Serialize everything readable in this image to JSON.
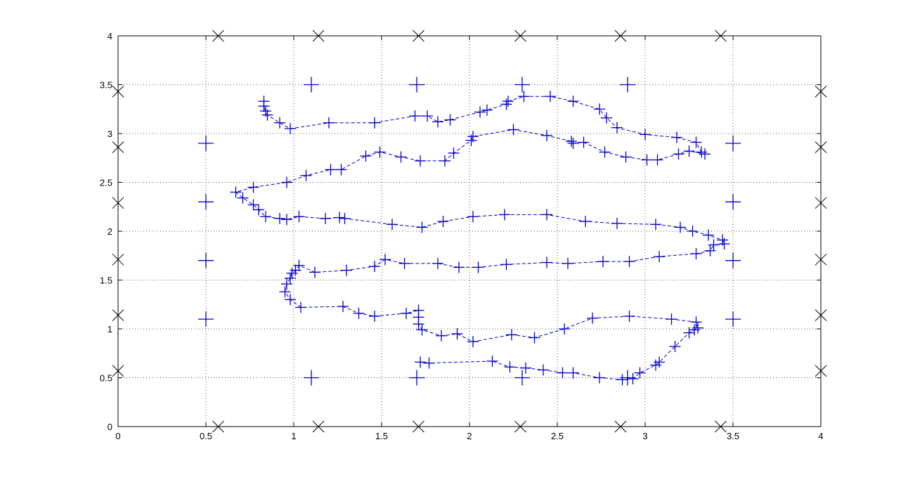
{
  "chart_data": {
    "type": "scatter",
    "title": "",
    "xlabel": "",
    "ylabel": "",
    "xlim": [
      0,
      4
    ],
    "ylim": [
      0,
      4
    ],
    "grid": true,
    "x_ticks": [
      "0",
      "0.5",
      "1",
      "1.5",
      "2",
      "2.5",
      "3",
      "3.5",
      "4"
    ],
    "y_ticks": [
      "0",
      "0.5",
      "1",
      "1.5",
      "2",
      "2.5",
      "3",
      "3.5",
      "4"
    ],
    "colors": {
      "series": "#0000cc",
      "markers": "#000000",
      "axes": "#000000",
      "grid": "#555555"
    },
    "series": [
      {
        "marker": "x",
        "color": "#000000",
        "points": [
          [
            0.57,
            4
          ],
          [
            1.14,
            4
          ],
          [
            1.71,
            4
          ],
          [
            2.29,
            4
          ],
          [
            2.86,
            4
          ],
          [
            3.43,
            4
          ],
          [
            0.57,
            0
          ],
          [
            1.14,
            0
          ],
          [
            1.71,
            0
          ],
          [
            2.29,
            0
          ],
          [
            2.86,
            0
          ],
          [
            3.43,
            0
          ],
          [
            0,
            0.57
          ],
          [
            0,
            1.14
          ],
          [
            0,
            1.71
          ],
          [
            0,
            2.29
          ],
          [
            0,
            2.86
          ],
          [
            0,
            3.43
          ],
          [
            4,
            0.57
          ],
          [
            4,
            1.14
          ],
          [
            4,
            1.71
          ],
          [
            4,
            2.29
          ],
          [
            4,
            2.86
          ],
          [
            4,
            3.43
          ]
        ]
      },
      {
        "marker": "+",
        "color": "#0000cc",
        "points": [
          [
            1.1,
            3.5
          ],
          [
            1.7,
            3.5
          ],
          [
            2.3,
            3.5
          ],
          [
            2.9,
            3.5
          ],
          [
            1.1,
            0.5
          ],
          [
            1.7,
            0.5
          ],
          [
            2.3,
            0.5
          ],
          [
            2.9,
            0.5
          ],
          [
            0.5,
            2.9
          ],
          [
            0.5,
            2.3
          ],
          [
            0.5,
            1.7
          ],
          [
            0.5,
            1.1
          ],
          [
            3.5,
            2.9
          ],
          [
            3.5,
            2.3
          ],
          [
            3.5,
            1.7
          ],
          [
            3.5,
            1.1
          ]
        ]
      },
      {
        "marker": "+",
        "line": "dashed",
        "color": "#0000cc",
        "points": [
          [
            1.72,
            0.66
          ],
          [
            1.77,
            0.65
          ],
          [
            2.13,
            0.67
          ],
          [
            2.23,
            0.61
          ],
          [
            2.32,
            0.6
          ],
          [
            2.42,
            0.58
          ],
          [
            2.53,
            0.55
          ],
          [
            2.59,
            0.55
          ],
          [
            2.74,
            0.5
          ],
          [
            2.87,
            0.48
          ],
          [
            2.93,
            0.49
          ],
          [
            2.97,
            0.55
          ],
          [
            3.06,
            0.63
          ],
          [
            3.08,
            0.66
          ],
          [
            3.17,
            0.82
          ],
          [
            3.25,
            0.96
          ],
          [
            3.28,
            0.99
          ],
          [
            3.3,
            1.01
          ],
          [
            3.29,
            1.07
          ],
          [
            3.15,
            1.1
          ],
          [
            2.91,
            1.13
          ],
          [
            2.7,
            1.11
          ],
          [
            2.54,
            1.0
          ],
          [
            2.37,
            0.91
          ],
          [
            2.24,
            0.94
          ],
          [
            2.02,
            0.87
          ],
          [
            1.93,
            0.95
          ],
          [
            1.84,
            0.93
          ],
          [
            1.73,
            0.99
          ],
          [
            1.71,
            1.05
          ],
          [
            1.71,
            1.12
          ],
          [
            1.71,
            1.19
          ],
          [
            1.64,
            1.16
          ],
          [
            1.46,
            1.13
          ],
          [
            1.37,
            1.16
          ],
          [
            1.28,
            1.23
          ],
          [
            1.04,
            1.22
          ],
          [
            0.98,
            1.3
          ],
          [
            0.95,
            1.38
          ],
          [
            0.96,
            1.46
          ],
          [
            0.98,
            1.52
          ],
          [
            0.99,
            1.57
          ],
          [
            1.01,
            1.6
          ],
          [
            1.03,
            1.65
          ],
          [
            1.12,
            1.58
          ],
          [
            1.3,
            1.6
          ],
          [
            1.46,
            1.64
          ],
          [
            1.52,
            1.71
          ],
          [
            1.63,
            1.67
          ],
          [
            1.82,
            1.67
          ],
          [
            1.94,
            1.63
          ],
          [
            2.05,
            1.63
          ],
          [
            2.21,
            1.66
          ],
          [
            2.44,
            1.68
          ],
          [
            2.56,
            1.67
          ],
          [
            2.76,
            1.69
          ],
          [
            2.91,
            1.69
          ],
          [
            3.08,
            1.74
          ],
          [
            3.29,
            1.77
          ],
          [
            3.37,
            1.8
          ],
          [
            3.39,
            1.86
          ],
          [
            3.45,
            1.87
          ],
          [
            3.44,
            1.91
          ],
          [
            3.36,
            1.96
          ],
          [
            3.27,
            2.0
          ],
          [
            3.2,
            2.04
          ],
          [
            3.06,
            2.07
          ],
          [
            2.84,
            2.08
          ],
          [
            2.66,
            2.1
          ],
          [
            2.44,
            2.17
          ],
          [
            2.2,
            2.17
          ],
          [
            2.02,
            2.15
          ],
          [
            1.85,
            2.1
          ],
          [
            1.73,
            2.04
          ],
          [
            1.56,
            2.07
          ],
          [
            1.29,
            2.13
          ],
          [
            1.26,
            2.14
          ],
          [
            1.18,
            2.13
          ],
          [
            1.03,
            2.15
          ],
          [
            0.96,
            2.12
          ],
          [
            0.92,
            2.13
          ],
          [
            0.84,
            2.15
          ],
          [
            0.8,
            2.22
          ],
          [
            0.77,
            2.27
          ],
          [
            0.71,
            2.34
          ],
          [
            0.67,
            2.4
          ],
          [
            0.77,
            2.45
          ],
          [
            0.96,
            2.5
          ],
          [
            1.07,
            2.57
          ],
          [
            1.21,
            2.63
          ],
          [
            1.27,
            2.63
          ],
          [
            1.41,
            2.77
          ],
          [
            1.49,
            2.81
          ],
          [
            1.61,
            2.76
          ],
          [
            1.72,
            2.72
          ],
          [
            1.86,
            2.72
          ],
          [
            1.91,
            2.8
          ],
          [
            2.01,
            2.93
          ],
          [
            2.02,
            2.97
          ],
          [
            2.25,
            3.04
          ],
          [
            2.44,
            2.98
          ],
          [
            2.58,
            2.92
          ],
          [
            2.59,
            2.9
          ],
          [
            2.65,
            2.91
          ],
          [
            2.77,
            2.81
          ],
          [
            2.89,
            2.76
          ],
          [
            3.01,
            2.73
          ],
          [
            3.07,
            2.73
          ],
          [
            3.19,
            2.79
          ],
          [
            3.25,
            2.82
          ],
          [
            3.34,
            2.79
          ],
          [
            3.32,
            2.81
          ],
          [
            3.29,
            2.91
          ],
          [
            3.18,
            2.96
          ],
          [
            3.0,
            2.99
          ],
          [
            2.84,
            3.06
          ],
          [
            2.78,
            3.16
          ],
          [
            2.74,
            3.25
          ],
          [
            2.59,
            3.33
          ],
          [
            2.46,
            3.38
          ],
          [
            2.31,
            3.38
          ],
          [
            2.22,
            3.33
          ],
          [
            2.21,
            3.3
          ],
          [
            2.1,
            3.24
          ],
          [
            2.06,
            3.22
          ],
          [
            1.89,
            3.14
          ],
          [
            1.82,
            3.12
          ],
          [
            1.76,
            3.18
          ],
          [
            1.69,
            3.18
          ],
          [
            1.46,
            3.11
          ],
          [
            1.2,
            3.11
          ],
          [
            0.98,
            3.05
          ],
          [
            0.92,
            3.11
          ],
          [
            0.85,
            3.19
          ],
          [
            0.84,
            3.23
          ],
          [
            0.83,
            3.28
          ],
          [
            0.83,
            3.33
          ]
        ]
      }
    ]
  }
}
